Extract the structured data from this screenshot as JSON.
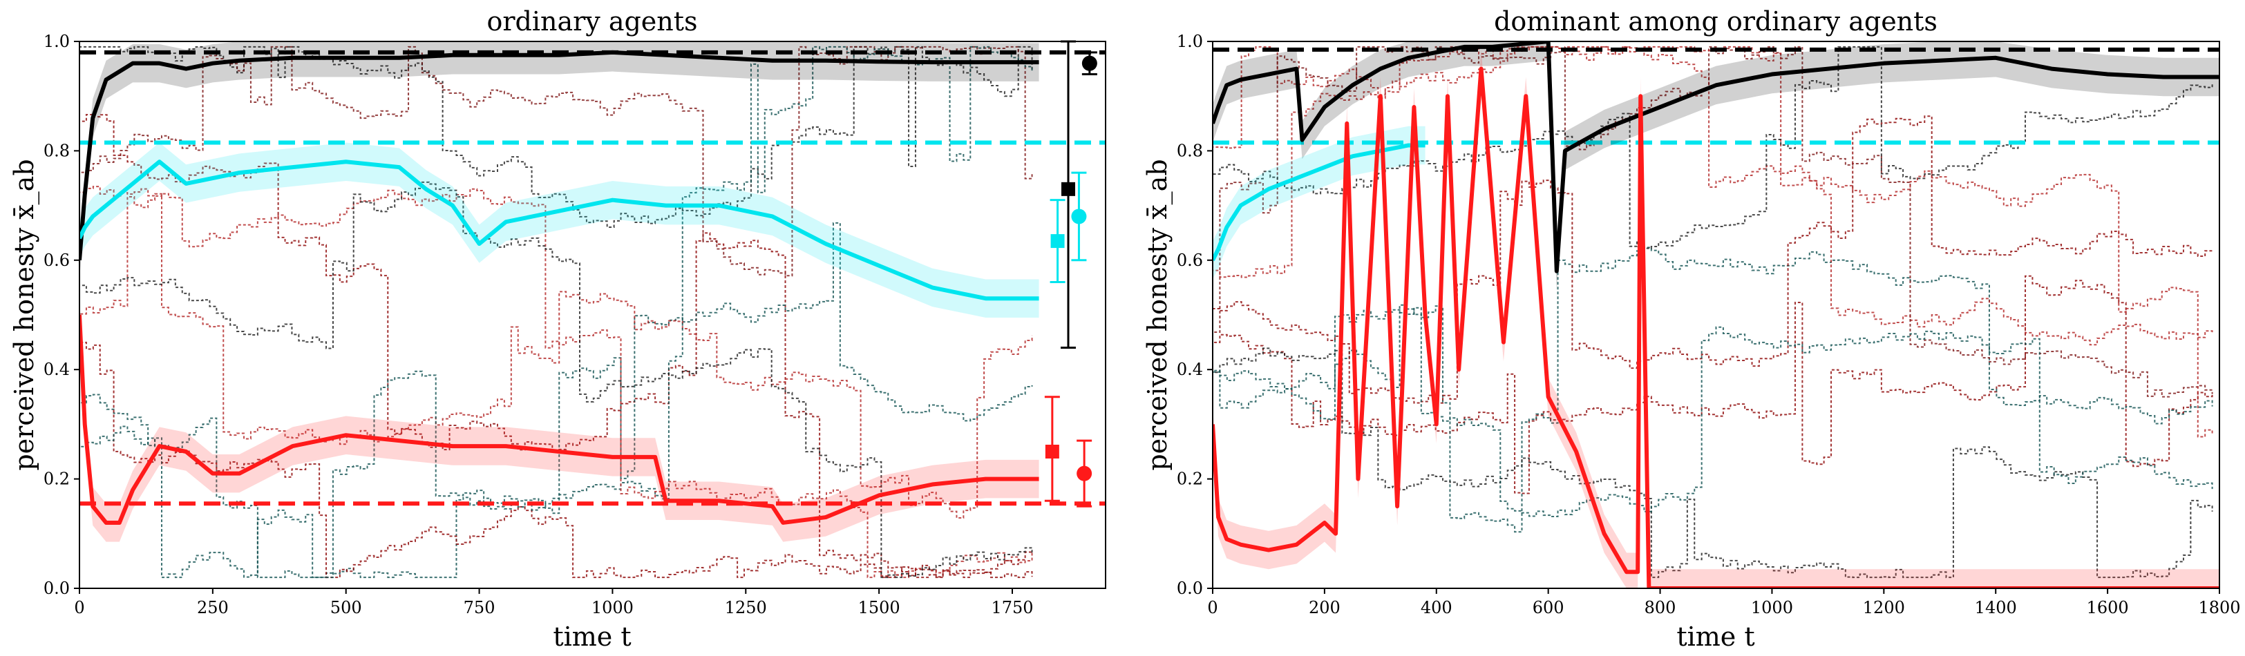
{
  "chart_data": [
    {
      "type": "line",
      "title": "ordinary agents",
      "xlabel": "time t",
      "ylabel": "perceived honesty x̄_ab",
      "xlim": [
        0,
        1925
      ],
      "ylim": [
        0,
        1
      ],
      "xticks": [
        "0",
        "250",
        "500",
        "750",
        "1000",
        "1250",
        "1500",
        "1750"
      ],
      "xtick_values": [
        0,
        250,
        500,
        750,
        1000,
        1250,
        1500,
        1750
      ],
      "yticks": [
        "0.0",
        "0.2",
        "0.4",
        "0.6",
        "0.8",
        "1.0"
      ],
      "ytick_values": [
        0,
        0.2,
        0.4,
        0.6,
        0.8,
        1.0
      ],
      "reference_lines": [
        {
          "name": "black reference",
          "color": "#000000",
          "y": 0.98
        },
        {
          "name": "cyan reference",
          "color": "#00e5ee",
          "y": 0.815
        },
        {
          "name": "red reference",
          "color": "#ff1a1a",
          "y": 0.155
        }
      ],
      "series": [
        {
          "name": "black mean",
          "color": "#000000",
          "x": [
            0,
            10,
            25,
            50,
            100,
            150,
            200,
            250,
            300,
            400,
            500,
            600,
            700,
            800,
            900,
            1000,
            1100,
            1200,
            1300,
            1400,
            1500,
            1600,
            1700,
            1800
          ],
          "y": [
            0.6,
            0.72,
            0.86,
            0.93,
            0.96,
            0.96,
            0.95,
            0.96,
            0.965,
            0.97,
            0.97,
            0.97,
            0.975,
            0.975,
            0.975,
            0.98,
            0.975,
            0.97,
            0.965,
            0.965,
            0.963,
            0.962,
            0.962,
            0.962
          ]
        },
        {
          "name": "cyan mean",
          "color": "#00e5ee",
          "x": [
            0,
            10,
            25,
            50,
            100,
            150,
            200,
            250,
            300,
            400,
            500,
            600,
            650,
            700,
            750,
            800,
            900,
            1000,
            1100,
            1200,
            1300,
            1400,
            1500,
            1600,
            1700,
            1800
          ],
          "y": [
            0.64,
            0.66,
            0.68,
            0.7,
            0.74,
            0.78,
            0.74,
            0.75,
            0.76,
            0.77,
            0.78,
            0.77,
            0.73,
            0.7,
            0.63,
            0.67,
            0.69,
            0.71,
            0.7,
            0.7,
            0.68,
            0.63,
            0.59,
            0.55,
            0.53,
            0.53
          ]
        },
        {
          "name": "red mean",
          "color": "#ff1a1a",
          "x": [
            0,
            10,
            25,
            50,
            75,
            100,
            150,
            200,
            250,
            300,
            400,
            500,
            600,
            700,
            800,
            900,
            1000,
            1080,
            1100,
            1200,
            1300,
            1320,
            1400,
            1500,
            1600,
            1700,
            1800
          ],
          "y": [
            0.5,
            0.3,
            0.15,
            0.12,
            0.12,
            0.18,
            0.26,
            0.25,
            0.21,
            0.21,
            0.26,
            0.28,
            0.27,
            0.26,
            0.26,
            0.25,
            0.24,
            0.24,
            0.16,
            0.16,
            0.15,
            0.12,
            0.13,
            0.17,
            0.19,
            0.2,
            0.2
          ]
        }
      ],
      "error_bars": [
        {
          "marker": "square",
          "color": "#000000",
          "x": 1855,
          "y": 0.73,
          "low": 0.44,
          "high": 1.0
        },
        {
          "marker": "circle",
          "color": "#000000",
          "x": 1895,
          "y": 0.96,
          "low": 0.94,
          "high": 0.98
        },
        {
          "marker": "square",
          "color": "#00e5ee",
          "x": 1835,
          "y": 0.635,
          "low": 0.56,
          "high": 0.71
        },
        {
          "marker": "circle",
          "color": "#00e5ee",
          "x": 1875,
          "y": 0.68,
          "low": 0.6,
          "high": 0.76
        },
        {
          "marker": "square",
          "color": "#ff1a1a",
          "x": 1825,
          "y": 0.25,
          "low": 0.16,
          "high": 0.35
        },
        {
          "marker": "circle",
          "color": "#ff1a1a",
          "x": 1885,
          "y": 0.21,
          "low": 0.15,
          "high": 0.27
        }
      ]
    },
    {
      "type": "line",
      "title": "dominant among ordinary agents",
      "xlabel": "time t",
      "ylabel": "perceived honesty x̄_ab",
      "xlim": [
        0,
        1800
      ],
      "ylim": [
        0,
        1
      ],
      "xticks": [
        "0",
        "200",
        "400",
        "600",
        "800",
        "1000",
        "1200",
        "1400",
        "1600",
        "1800"
      ],
      "xtick_values": [
        0,
        200,
        400,
        600,
        800,
        1000,
        1200,
        1400,
        1600,
        1800
      ],
      "yticks": [
        "0.0",
        "0.2",
        "0.4",
        "0.6",
        "0.8",
        "1.0"
      ],
      "ytick_values": [
        0,
        0.2,
        0.4,
        0.6,
        0.8,
        1.0
      ],
      "reference_lines": [
        {
          "name": "black reference",
          "color": "#000000",
          "y": 0.985
        },
        {
          "name": "cyan reference",
          "color": "#00e5ee",
          "y": 0.815
        }
      ],
      "series": [
        {
          "name": "black mean",
          "color": "#000000",
          "x": [
            0,
            10,
            25,
            50,
            100,
            150,
            160,
            200,
            250,
            300,
            350,
            400,
            450,
            500,
            600,
            615,
            630,
            700,
            800,
            900,
            1000,
            1100,
            1200,
            1300,
            1400,
            1500,
            1600,
            1700,
            1800
          ],
          "y": [
            0.85,
            0.88,
            0.92,
            0.93,
            0.94,
            0.95,
            0.82,
            0.88,
            0.92,
            0.95,
            0.97,
            0.98,
            0.99,
            0.99,
            1.0,
            0.58,
            0.8,
            0.84,
            0.88,
            0.92,
            0.94,
            0.95,
            0.96,
            0.965,
            0.97,
            0.95,
            0.94,
            0.935,
            0.935
          ]
        },
        {
          "name": "cyan mean",
          "color": "#00e5ee",
          "x": [
            0,
            10,
            25,
            50,
            100,
            150,
            200,
            250,
            300,
            350,
            380
          ],
          "y": [
            0.6,
            0.62,
            0.66,
            0.7,
            0.73,
            0.75,
            0.77,
            0.79,
            0.8,
            0.81,
            0.81
          ]
        },
        {
          "name": "red mean",
          "color": "#ff1a1a",
          "x": [
            0,
            10,
            25,
            50,
            100,
            150,
            200,
            220,
            240,
            260,
            300,
            330,
            360,
            380,
            400,
            420,
            440,
            480,
            520,
            560,
            600,
            650,
            700,
            740,
            760,
            765,
            780,
            800,
            1000,
            1400,
            1800
          ],
          "y": [
            0.3,
            0.13,
            0.09,
            0.08,
            0.07,
            0.08,
            0.12,
            0.1,
            0.85,
            0.2,
            0.9,
            0.15,
            0.88,
            0.5,
            0.3,
            0.9,
            0.4,
            0.95,
            0.45,
            0.9,
            0.35,
            0.25,
            0.1,
            0.03,
            0.03,
            0.9,
            0.0,
            0.0,
            0.0,
            0.0,
            0.0
          ]
        }
      ],
      "error_bars": []
    }
  ]
}
